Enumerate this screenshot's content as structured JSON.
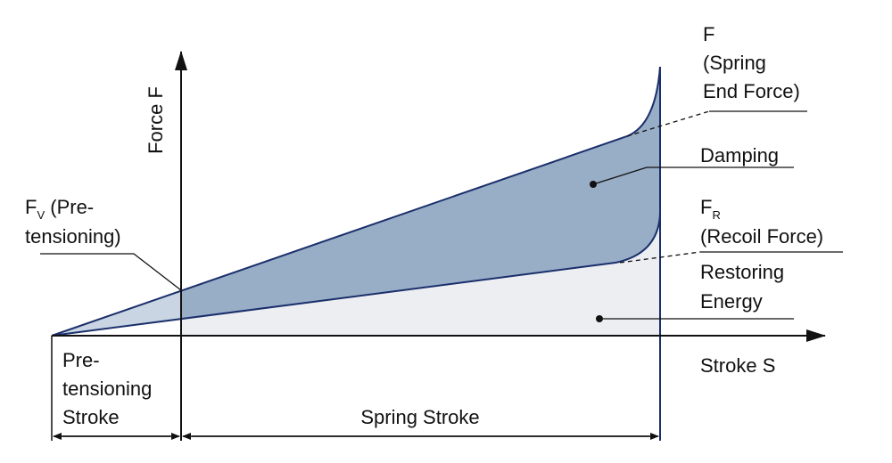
{
  "axis_y": "Force F",
  "axis_x": "Stroke S",
  "spring_end_force": {
    "lines": [
      "F",
      "(Spring",
      "End Force)"
    ]
  },
  "damping": "Damping",
  "recoil_force": {
    "symbol": "F",
    "sub": "R",
    "text": "(Recoil Force)"
  },
  "restoring_energy": {
    "lines": [
      "Restoring",
      "Energy"
    ]
  },
  "pretensioning": {
    "symbol": "F",
    "sub": "V",
    "lines": [
      " (Pre-",
      "tensioning)"
    ]
  },
  "pretensioning_stroke": {
    "lines": [
      "Pre-",
      "tensioning",
      "Stroke"
    ]
  },
  "spring_stroke": "Spring Stroke"
}
